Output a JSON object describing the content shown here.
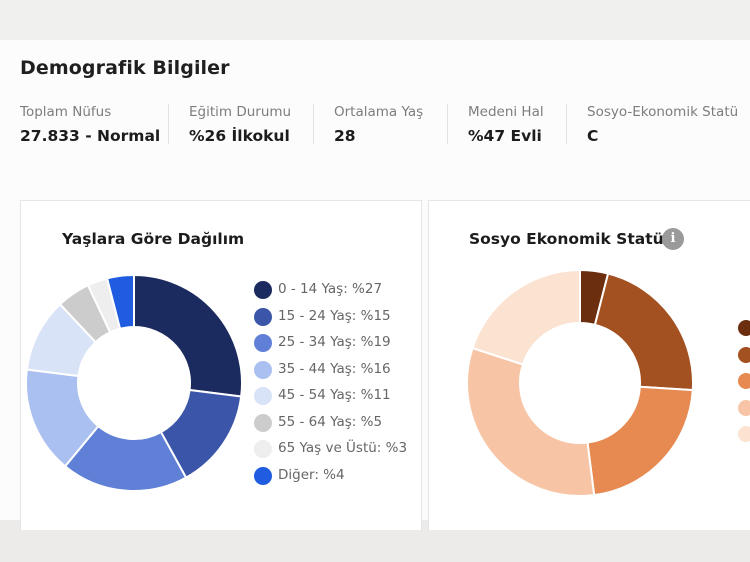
{
  "title": "Demografik Bilgiler",
  "stats": [
    {
      "label": "Toplam Nüfus",
      "value": "27.833 - Normal"
    },
    {
      "label": "Eğitim Durumu",
      "value": "%26 İlkokul"
    },
    {
      "label": "Ortalama Yaş",
      "value": "28"
    },
    {
      "label": "Medeni Hal",
      "value": "%47 Evli"
    },
    {
      "label": "Sosyo-Ekonomik Statü",
      "value": "C"
    }
  ],
  "age_card": {
    "title": "Yaşlara Göre Dağılım"
  },
  "ses_card": {
    "title": "Sosyo Ekonomik Statü",
    "info_icon": "info-icon",
    "info_glyph": "i"
  },
  "chart_data": [
    {
      "type": "pie",
      "title": "Yaşlara Göre Dağılım",
      "categories": [
        "0 - 14 Yaş",
        "15 - 24 Yaş",
        "25 - 34 Yaş",
        "35 - 44 Yaş",
        "45 - 54 Yaş",
        "55 - 64 Yaş",
        "65 Yaş ve Üstü",
        "Diğer"
      ],
      "values": [
        27,
        15,
        19,
        16,
        11,
        5,
        3,
        4
      ],
      "legend_labels": [
        "0 - 14 Yaş: %27",
        "15 - 24 Yaş: %15",
        "25 - 34 Yaş: %19",
        "35 - 44 Yaş: %16",
        "45 - 54 Yaş: %11",
        "55 - 64 Yaş: %5",
        "65 Yaş ve Üstü: %3",
        "Diğer: %4"
      ],
      "colors": [
        "#1c2b5f",
        "#3b56a8",
        "#5f80d6",
        "#aac0f0",
        "#d9e3f8",
        "#cccccc",
        "#eeeeee",
        "#1f5ce0"
      ],
      "legend_placement": "right"
    },
    {
      "type": "pie",
      "title": "Sosyo Ekonomik Statü",
      "values": [
        4,
        22,
        22,
        32,
        20
      ],
      "colors": [
        "#6b2f10",
        "#a35121",
        "#e68a52",
        "#f7c5a5",
        "#fbe2d1"
      ],
      "legend_placement": "right"
    }
  ]
}
